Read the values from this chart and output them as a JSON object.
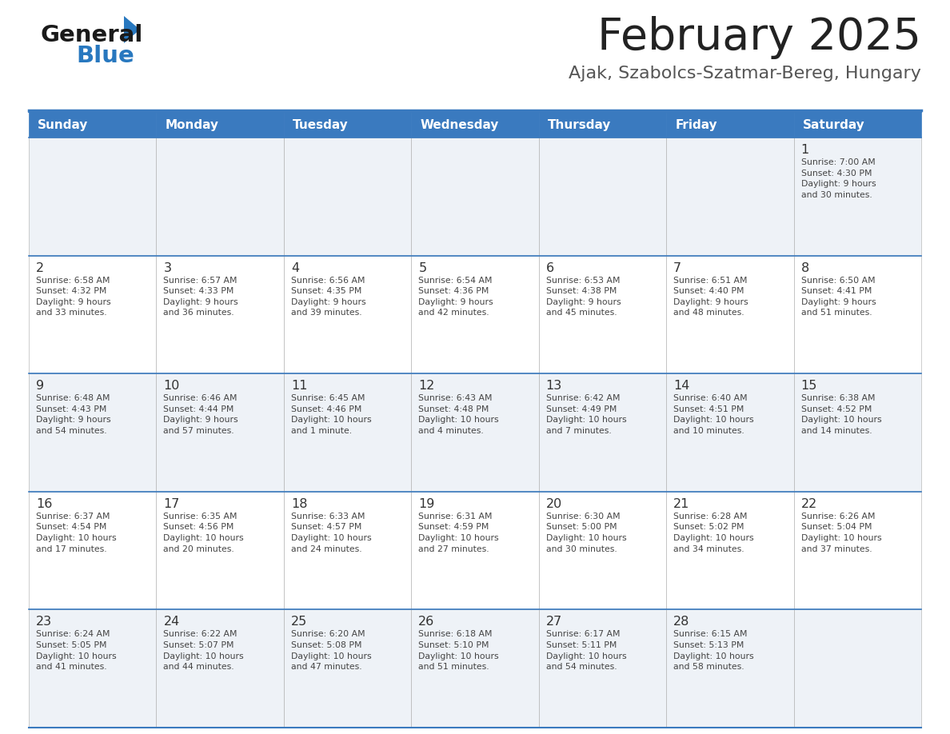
{
  "title": "February 2025",
  "subtitle": "Ajak, Szabolcs-Szatmar-Bereg, Hungary",
  "header_bg_color": "#3a7abf",
  "header_text_color": "#ffffff",
  "row_bg_even": "#eef2f7",
  "row_bg_odd": "#ffffff",
  "border_color": "#3a7abf",
  "cell_border_color": "#aaaaaa",
  "day_headers": [
    "Sunday",
    "Monday",
    "Tuesday",
    "Wednesday",
    "Thursday",
    "Friday",
    "Saturday"
  ],
  "title_color": "#222222",
  "subtitle_color": "#555555",
  "day_num_color": "#333333",
  "info_color": "#444444",
  "logo_general_color": "#1a1a1a",
  "logo_blue_color": "#2878bf",
  "calendar": [
    [
      {
        "day": null,
        "info": null
      },
      {
        "day": null,
        "info": null
      },
      {
        "day": null,
        "info": null
      },
      {
        "day": null,
        "info": null
      },
      {
        "day": null,
        "info": null
      },
      {
        "day": null,
        "info": null
      },
      {
        "day": "1",
        "info": "Sunrise: 7:00 AM\nSunset: 4:30 PM\nDaylight: 9 hours\nand 30 minutes."
      }
    ],
    [
      {
        "day": "2",
        "info": "Sunrise: 6:58 AM\nSunset: 4:32 PM\nDaylight: 9 hours\nand 33 minutes."
      },
      {
        "day": "3",
        "info": "Sunrise: 6:57 AM\nSunset: 4:33 PM\nDaylight: 9 hours\nand 36 minutes."
      },
      {
        "day": "4",
        "info": "Sunrise: 6:56 AM\nSunset: 4:35 PM\nDaylight: 9 hours\nand 39 minutes."
      },
      {
        "day": "5",
        "info": "Sunrise: 6:54 AM\nSunset: 4:36 PM\nDaylight: 9 hours\nand 42 minutes."
      },
      {
        "day": "6",
        "info": "Sunrise: 6:53 AM\nSunset: 4:38 PM\nDaylight: 9 hours\nand 45 minutes."
      },
      {
        "day": "7",
        "info": "Sunrise: 6:51 AM\nSunset: 4:40 PM\nDaylight: 9 hours\nand 48 minutes."
      },
      {
        "day": "8",
        "info": "Sunrise: 6:50 AM\nSunset: 4:41 PM\nDaylight: 9 hours\nand 51 minutes."
      }
    ],
    [
      {
        "day": "9",
        "info": "Sunrise: 6:48 AM\nSunset: 4:43 PM\nDaylight: 9 hours\nand 54 minutes."
      },
      {
        "day": "10",
        "info": "Sunrise: 6:46 AM\nSunset: 4:44 PM\nDaylight: 9 hours\nand 57 minutes."
      },
      {
        "day": "11",
        "info": "Sunrise: 6:45 AM\nSunset: 4:46 PM\nDaylight: 10 hours\nand 1 minute."
      },
      {
        "day": "12",
        "info": "Sunrise: 6:43 AM\nSunset: 4:48 PM\nDaylight: 10 hours\nand 4 minutes."
      },
      {
        "day": "13",
        "info": "Sunrise: 6:42 AM\nSunset: 4:49 PM\nDaylight: 10 hours\nand 7 minutes."
      },
      {
        "day": "14",
        "info": "Sunrise: 6:40 AM\nSunset: 4:51 PM\nDaylight: 10 hours\nand 10 minutes."
      },
      {
        "day": "15",
        "info": "Sunrise: 6:38 AM\nSunset: 4:52 PM\nDaylight: 10 hours\nand 14 minutes."
      }
    ],
    [
      {
        "day": "16",
        "info": "Sunrise: 6:37 AM\nSunset: 4:54 PM\nDaylight: 10 hours\nand 17 minutes."
      },
      {
        "day": "17",
        "info": "Sunrise: 6:35 AM\nSunset: 4:56 PM\nDaylight: 10 hours\nand 20 minutes."
      },
      {
        "day": "18",
        "info": "Sunrise: 6:33 AM\nSunset: 4:57 PM\nDaylight: 10 hours\nand 24 minutes."
      },
      {
        "day": "19",
        "info": "Sunrise: 6:31 AM\nSunset: 4:59 PM\nDaylight: 10 hours\nand 27 minutes."
      },
      {
        "day": "20",
        "info": "Sunrise: 6:30 AM\nSunset: 5:00 PM\nDaylight: 10 hours\nand 30 minutes."
      },
      {
        "day": "21",
        "info": "Sunrise: 6:28 AM\nSunset: 5:02 PM\nDaylight: 10 hours\nand 34 minutes."
      },
      {
        "day": "22",
        "info": "Sunrise: 6:26 AM\nSunset: 5:04 PM\nDaylight: 10 hours\nand 37 minutes."
      }
    ],
    [
      {
        "day": "23",
        "info": "Sunrise: 6:24 AM\nSunset: 5:05 PM\nDaylight: 10 hours\nand 41 minutes."
      },
      {
        "day": "24",
        "info": "Sunrise: 6:22 AM\nSunset: 5:07 PM\nDaylight: 10 hours\nand 44 minutes."
      },
      {
        "day": "25",
        "info": "Sunrise: 6:20 AM\nSunset: 5:08 PM\nDaylight: 10 hours\nand 47 minutes."
      },
      {
        "day": "26",
        "info": "Sunrise: 6:18 AM\nSunset: 5:10 PM\nDaylight: 10 hours\nand 51 minutes."
      },
      {
        "day": "27",
        "info": "Sunrise: 6:17 AM\nSunset: 5:11 PM\nDaylight: 10 hours\nand 54 minutes."
      },
      {
        "day": "28",
        "info": "Sunrise: 6:15 AM\nSunset: 5:13 PM\nDaylight: 10 hours\nand 58 minutes."
      },
      {
        "day": null,
        "info": null
      }
    ]
  ]
}
